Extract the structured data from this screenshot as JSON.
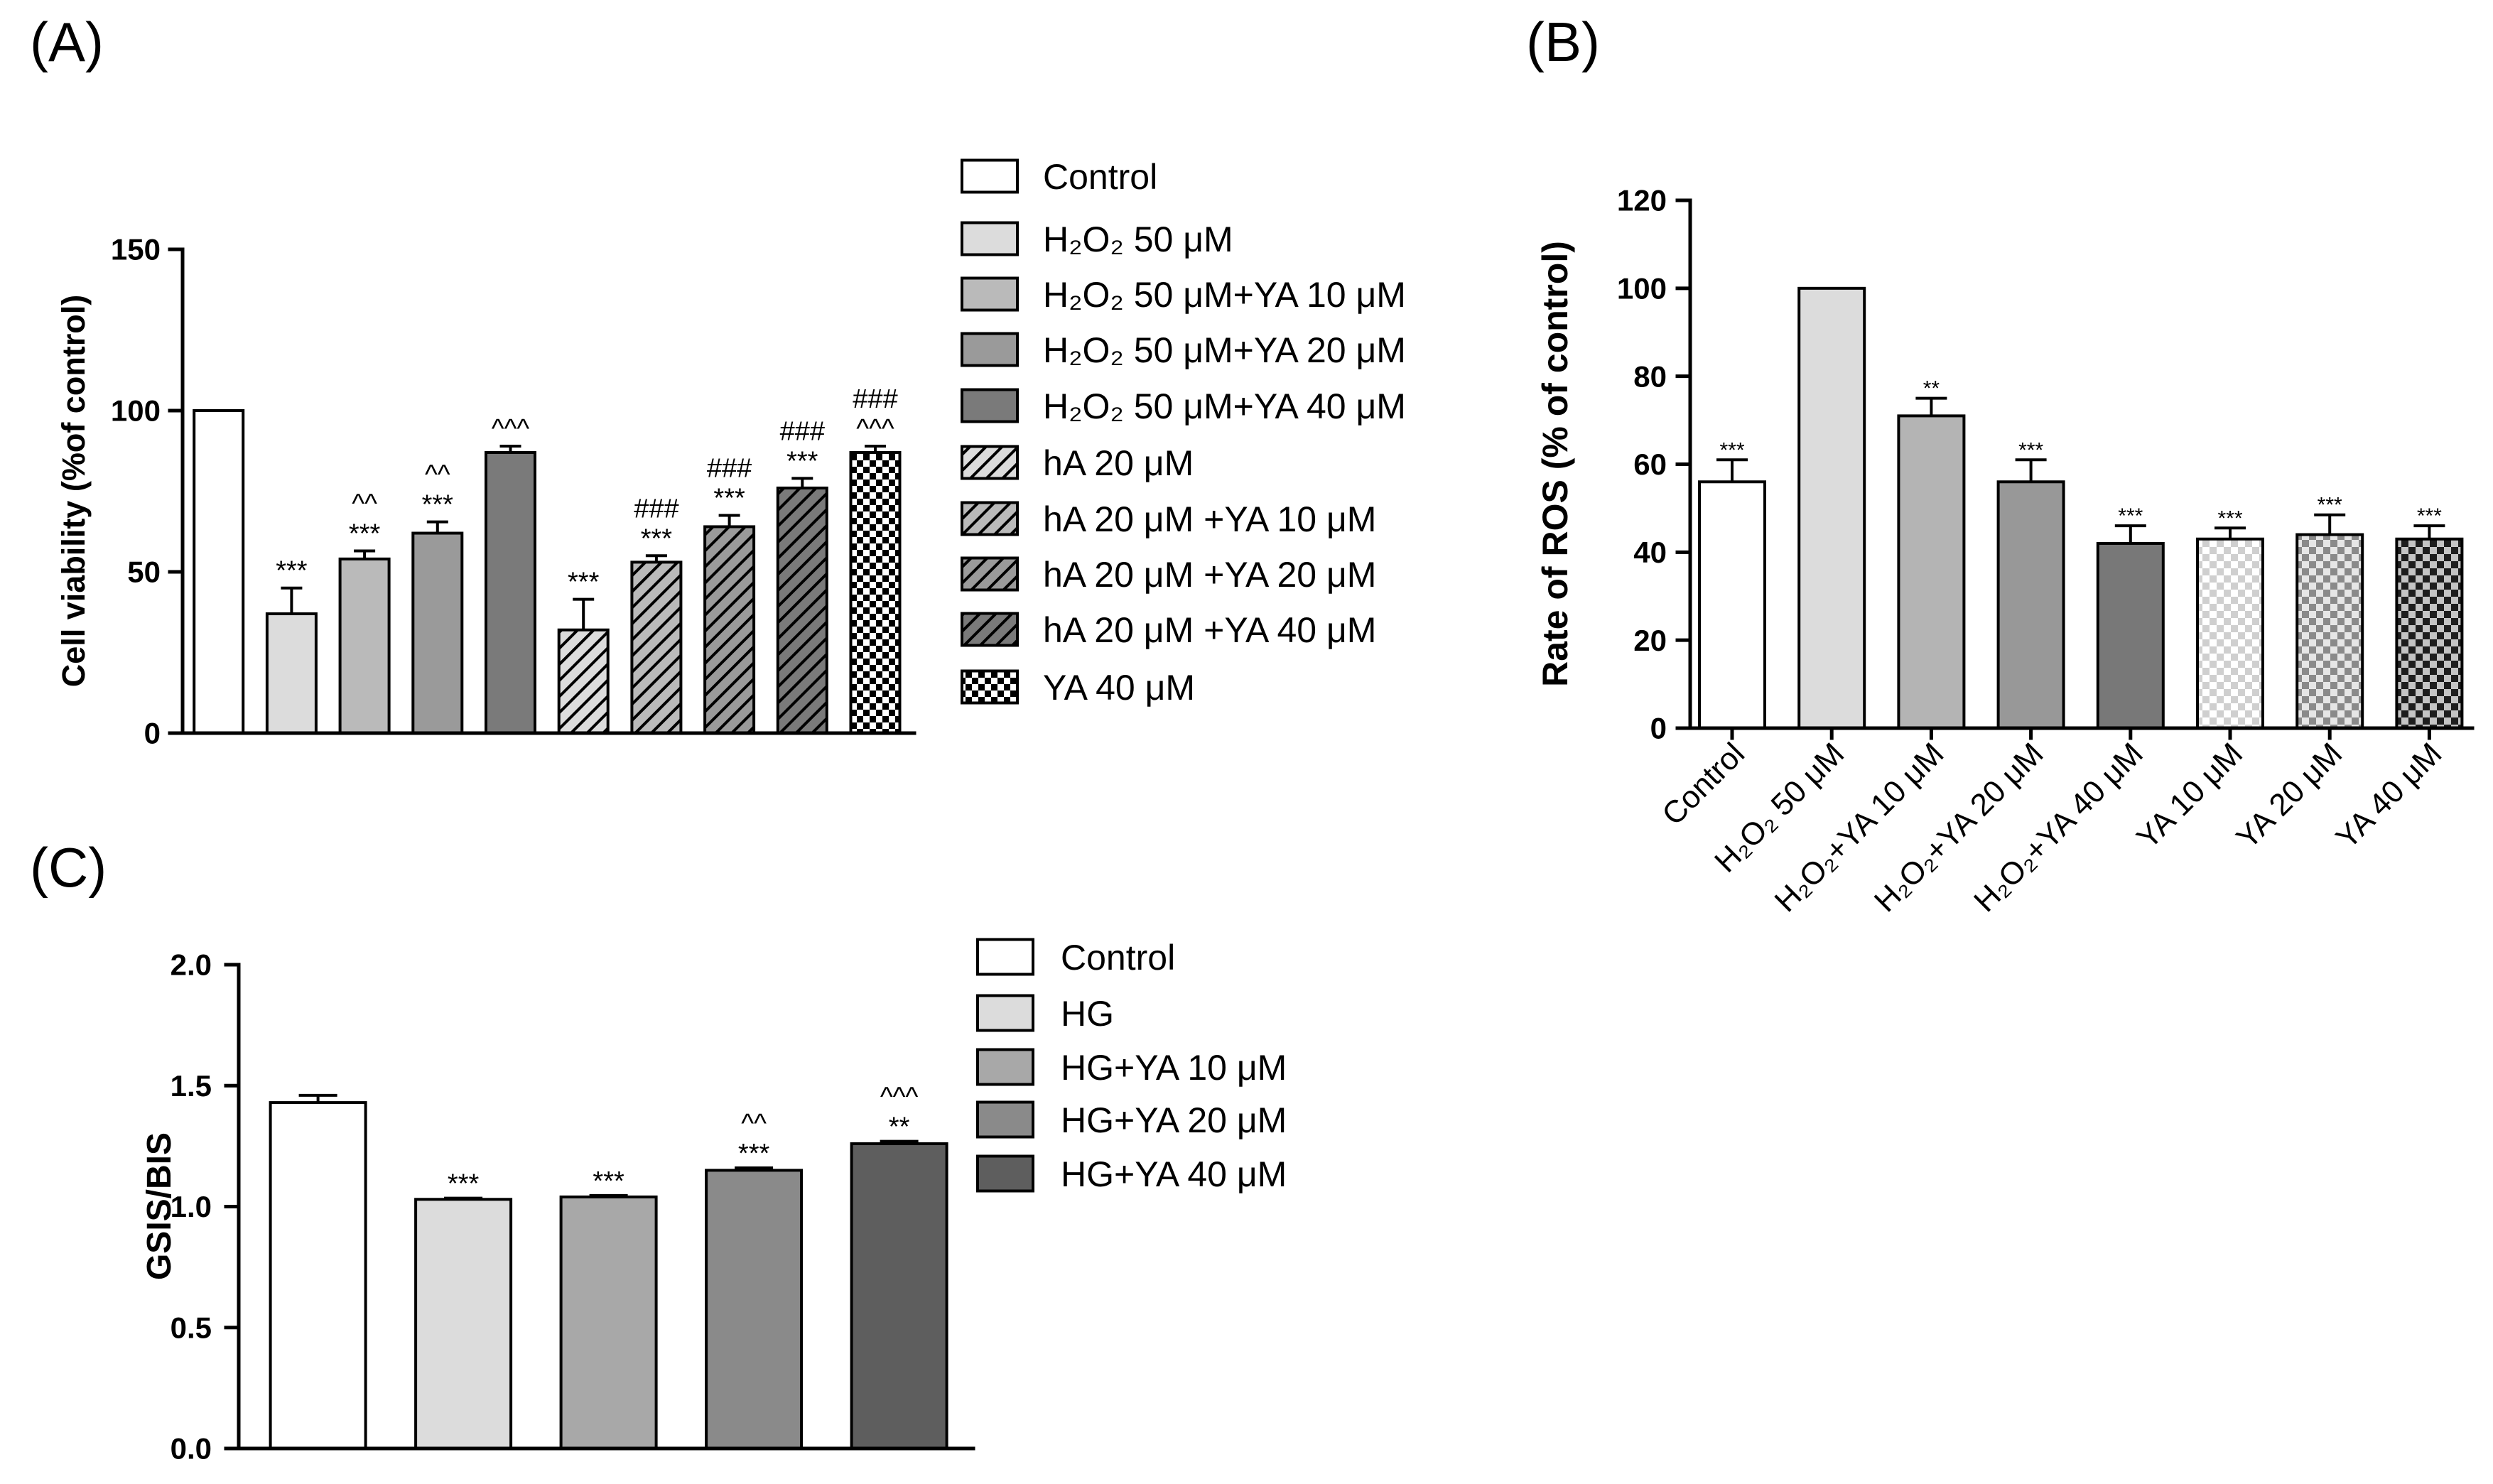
{
  "chart_data": [
    {
      "type": "bar",
      "panel": "(A)",
      "ylabel": "Cell viability (%of control)",
      "ylim": [
        0,
        150
      ],
      "yticks": [
        "0",
        "50",
        "100",
        "150"
      ],
      "categories": [
        "Control",
        "H₂O₂ 50 μM",
        "H₂O₂ 50 μM+YA 10 μM",
        "H₂O₂ 50 μM+YA 20 μM",
        "H₂O₂ 50 μM+YA 40 μM",
        "hA 20 μM",
        "hA 20 μM +YA 10 μM",
        "hA 20 μM +YA 20 μM",
        "hA 20 μM +YA 40 μM",
        "YA 40 μM"
      ],
      "values": [
        100,
        37,
        54,
        62,
        87,
        32,
        53,
        64,
        76,
        87
      ],
      "errors": [
        0,
        8,
        2.5,
        3.5,
        2,
        9.5,
        2,
        3.5,
        3,
        2
      ],
      "annotations": [
        [],
        [
          "***"
        ],
        [
          "***",
          "^^"
        ],
        [
          "***",
          "^^"
        ],
        [
          "^^^"
        ],
        [
          "***"
        ],
        [
          "***",
          "###"
        ],
        [
          "***",
          "###"
        ],
        [
          "***",
          "###"
        ],
        [
          "^^^",
          "###"
        ]
      ],
      "bar_styles": [
        {
          "fill": "#ffffff"
        },
        {
          "fill": "#dcdcdc"
        },
        {
          "fill": "#bababa"
        },
        {
          "fill": "#9a9a9a"
        },
        {
          "fill": "#7a7a7a"
        },
        {
          "fill": "#dcdcdc",
          "hatch": "#000000"
        },
        {
          "fill": "#bababa",
          "hatch": "#000000"
        },
        {
          "fill": "#9a9a9a",
          "hatch": "#000000"
        },
        {
          "fill": "#7a7a7a",
          "hatch": "#000000"
        },
        {
          "fill": "#ffffff",
          "checker": "#000000"
        }
      ]
    },
    {
      "type": "bar",
      "panel": "(B)",
      "ylabel": "Rate of ROS (% of control)",
      "ylim": [
        0,
        120
      ],
      "yticks": [
        "0",
        "20",
        "40",
        "60",
        "80",
        "100",
        "120"
      ],
      "categories": [
        "Control",
        "H₂O₂ 50 μM",
        "H₂O₂+YA 10 μM",
        "H₂O₂+YA 20 μM",
        "H₂O₂+YA 40 μM",
        "YA 10 μM",
        "YA 20 μM",
        "YA 40 μM"
      ],
      "values": [
        56,
        100,
        71,
        56,
        42,
        43,
        44,
        43
      ],
      "errors": [
        5,
        0,
        4,
        5,
        4,
        2.5,
        4.5,
        3
      ],
      "annotations": [
        [
          "***"
        ],
        [],
        [
          "**"
        ],
        [
          "***"
        ],
        [
          "***"
        ],
        [
          "***"
        ],
        [
          "***"
        ],
        [
          "***"
        ]
      ],
      "bar_styles": [
        {
          "fill": "#ffffff"
        },
        {
          "fill": "#dcdcdc"
        },
        {
          "fill": "#b4b4b4"
        },
        {
          "fill": "#989898"
        },
        {
          "fill": "#787878"
        },
        {
          "fill": "#ffffff",
          "checker": "#cfcfcf"
        },
        {
          "fill": "#e6e6e6",
          "checker": "#8a8a8a"
        },
        {
          "fill": "#c4c4c4",
          "checker": "#1e1e1e"
        }
      ]
    },
    {
      "type": "bar",
      "panel": "(C)",
      "ylabel": "GSIS/BIS",
      "ylim": [
        0,
        2.0
      ],
      "yticks": [
        "0.0",
        "0.5",
        "1.0",
        "1.5",
        "2.0"
      ],
      "categories": [
        "Control",
        "HG",
        "HG+YA 10 μM",
        "HG+YA 20 μM",
        "HG+YA 40 μM"
      ],
      "values": [
        1.43,
        1.03,
        1.04,
        1.15,
        1.26
      ],
      "errors": [
        0.03,
        0.005,
        0.006,
        0.01,
        0.01
      ],
      "annotations": [
        [],
        [
          "***"
        ],
        [
          "***"
        ],
        [
          "***",
          "^^"
        ],
        [
          "**",
          "^^^"
        ]
      ],
      "bar_styles": [
        {
          "fill": "#ffffff"
        },
        {
          "fill": "#dcdcdc"
        },
        {
          "fill": "#a8a8a8"
        },
        {
          "fill": "#8a8a8a"
        },
        {
          "fill": "#5e5e5e"
        }
      ]
    }
  ]
}
